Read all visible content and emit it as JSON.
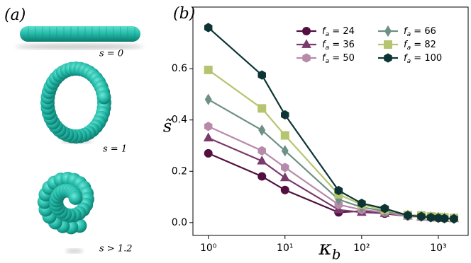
{
  "chart_data": {
    "type": "line",
    "panel_labels": [
      "(a)",
      "(b)"
    ],
    "shape_labels": [
      "s = 0",
      "s = 1",
      "s > 1.2"
    ],
    "xlabel": "κb",
    "ylabel": "s̃",
    "x": [
      1,
      5,
      10,
      50,
      100,
      200,
      400,
      600,
      800,
      1000,
      1200,
      1600
    ],
    "xscale": "log",
    "xlim": [
      0.63,
      2450
    ],
    "xticks": [
      {
        "value": 1,
        "label": "10⁰"
      },
      {
        "value": 10,
        "label": "10¹"
      },
      {
        "value": 100,
        "label": "10²"
      },
      {
        "value": 1000,
        "label": "10³"
      }
    ],
    "ylim": [
      -0.05,
      0.84
    ],
    "yticks": [
      {
        "value": 0,
        "label": "0.0"
      },
      0.2,
      0.4,
      0.6
    ],
    "grid": false,
    "legend": "upper right",
    "series": [
      {
        "name": "fa = 24",
        "color": "#520f40",
        "marker": "circle",
        "values": [
          0.27,
          0.18,
          0.127,
          0.04,
          0.045,
          0.035,
          0.025,
          0.022,
          0.02,
          0.018,
          0.016,
          0.015
        ]
      },
      {
        "name": "fa = 36",
        "color": "#7a3a6c",
        "marker": "triangle",
        "values": [
          0.33,
          0.24,
          0.175,
          0.05,
          0.04,
          0.036,
          0.026,
          0.022,
          0.02,
          0.018,
          0.016,
          0.015
        ]
      },
      {
        "name": "fa = 50",
        "color": "#b88aaa",
        "marker": "hexagon",
        "values": [
          0.375,
          0.28,
          0.215,
          0.07,
          0.05,
          0.04,
          0.025,
          0.022,
          0.02,
          0.018,
          0.016,
          0.015
        ]
      },
      {
        "name": "fa = 66",
        "color": "#6e9086",
        "marker": "diamond",
        "values": [
          0.48,
          0.36,
          0.28,
          0.09,
          0.06,
          0.045,
          0.028,
          0.025,
          0.022,
          0.02,
          0.018,
          0.016
        ]
      },
      {
        "name": "fa = 82",
        "color": "#b5c46e",
        "marker": "square",
        "values": [
          0.595,
          0.445,
          0.34,
          0.11,
          0.07,
          0.05,
          0.03,
          0.028,
          0.024,
          0.022,
          0.02,
          0.018
        ]
      },
      {
        "name": "fa = 100",
        "color": "#0d3434",
        "marker": "hexagon",
        "values": [
          0.76,
          0.575,
          0.42,
          0.125,
          0.075,
          0.055,
          0.028,
          0.024,
          0.02,
          0.018,
          0.016,
          0.015
        ]
      }
    ]
  }
}
